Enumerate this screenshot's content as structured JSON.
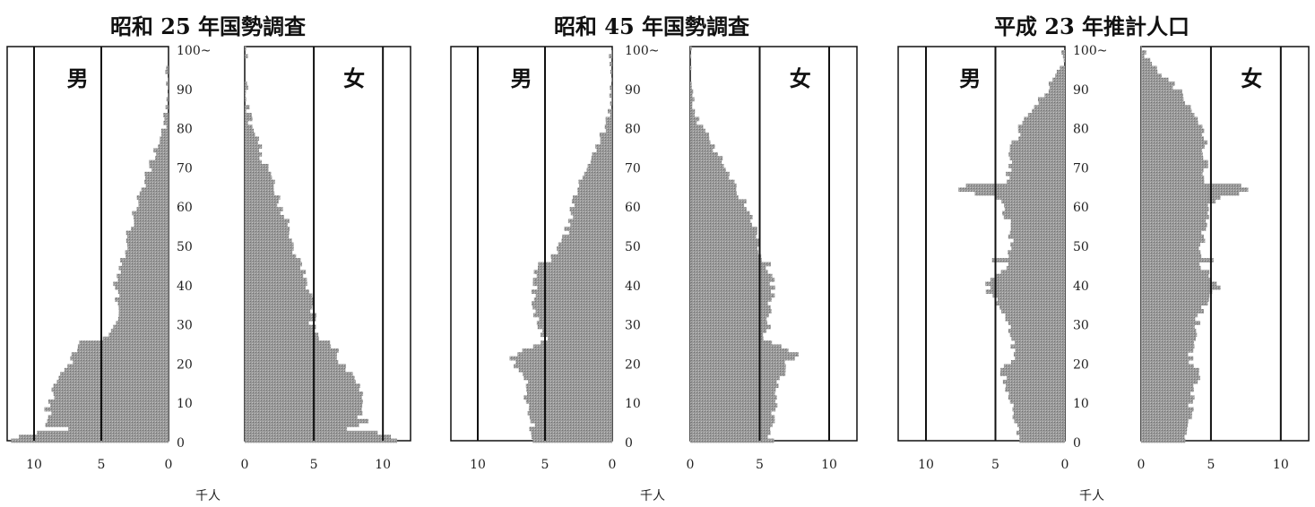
{
  "chart_data": [
    {
      "type": "bar",
      "title": "昭和 25 年国勢調査",
      "male_label": "男",
      "female_label": "女",
      "unit_label": "千人",
      "x_ticks": [
        "10",
        "5",
        "0"
      ],
      "x_ticks_female": [
        "0",
        "5",
        "10"
      ],
      "y_ticks": [
        "0",
        "10",
        "20",
        "30",
        "40",
        "50",
        "60",
        "70",
        "80",
        "90",
        "100~"
      ],
      "xlim": [
        0,
        12
      ],
      "ylim": [
        0,
        100
      ],
      "anchors_age": [
        0,
        1,
        2,
        3,
        4,
        5,
        6,
        8,
        10,
        15,
        17,
        20,
        25,
        26,
        27,
        30,
        31,
        35,
        40,
        45,
        50,
        55,
        60,
        65,
        70,
        75,
        80,
        85,
        90
      ],
      "male_anchors": [
        11.5,
        11.0,
        10.0,
        7.5,
        9.0,
        9.2,
        8.8,
        9.0,
        8.8,
        8.5,
        8.0,
        7.3,
        6.6,
        5.0,
        4.4,
        4.0,
        3.5,
        3.8,
        4.0,
        3.6,
        3.2,
        2.8,
        2.4,
        1.9,
        1.3,
        0.9,
        0.3,
        0.05,
        0.0
      ],
      "female_anchors": [
        11.0,
        10.6,
        9.7,
        7.2,
        8.5,
        8.8,
        8.4,
        8.6,
        8.4,
        8.2,
        7.6,
        7.0,
        6.3,
        5.5,
        5.2,
        4.8,
        5.0,
        4.8,
        4.5,
        4.0,
        3.5,
        3.1,
        2.6,
        2.1,
        1.5,
        1.0,
        0.5,
        0.15,
        0.0
      ]
    },
    {
      "type": "bar",
      "title": "昭和 45 年国勢調査",
      "male_label": "男",
      "female_label": "女",
      "unit_label": "千人",
      "x_ticks": [
        "10",
        "5",
        "0"
      ],
      "x_ticks_female": [
        "0",
        "5",
        "10"
      ],
      "y_ticks": [
        "0",
        "10",
        "20",
        "30",
        "40",
        "50",
        "60",
        "70",
        "80",
        "90",
        "100~"
      ],
      "xlim": [
        0,
        12
      ],
      "ylim": [
        0,
        100
      ],
      "anchors_age": [
        0,
        5,
        10,
        15,
        20,
        21,
        22,
        23,
        24,
        25,
        26,
        30,
        35,
        40,
        45,
        46,
        50,
        55,
        60,
        65,
        70,
        75,
        80,
        85,
        90
      ],
      "male_anchors": [
        6.0,
        6.0,
        6.3,
        6.5,
        7.3,
        7.6,
        7.2,
        6.6,
        6.0,
        5.4,
        5.0,
        5.6,
        5.8,
        5.8,
        5.5,
        4.5,
        3.8,
        3.2,
        3.0,
        2.4,
        1.9,
        1.2,
        0.5,
        0.1,
        0.0
      ],
      "female_anchors": [
        5.8,
        5.9,
        6.2,
        6.4,
        7.0,
        7.6,
        8.0,
        7.3,
        6.8,
        5.8,
        5.4,
        5.6,
        5.8,
        5.9,
        5.6,
        5.0,
        5.0,
        4.5,
        4.0,
        3.2,
        2.5,
        1.6,
        0.8,
        0.2,
        0.0
      ]
    },
    {
      "type": "bar",
      "title": "平成 23 年推計人口",
      "male_label": "男",
      "female_label": "女",
      "unit_label": "千人",
      "x_ticks": [
        "10",
        "5",
        "0"
      ],
      "x_ticks_female": [
        "0",
        "5",
        "10"
      ],
      "y_ticks": [
        "0",
        "10",
        "20",
        "30",
        "40",
        "50",
        "60",
        "70",
        "80",
        "90",
        "100~"
      ],
      "xlim": [
        0,
        12
      ],
      "ylim": [
        0,
        100
      ],
      "anchors_age": [
        0,
        10,
        18,
        20,
        25,
        30,
        35,
        38,
        40,
        45,
        46,
        47,
        50,
        55,
        60,
        62,
        63,
        64,
        65,
        66,
        70,
        75,
        80,
        85,
        90,
        95,
        100
      ],
      "male_anchors": [
        3.3,
        3.8,
        4.5,
        3.8,
        3.7,
        4.2,
        4.8,
        5.5,
        5.6,
        4.0,
        5.0,
        4.0,
        3.8,
        4.0,
        4.5,
        5.0,
        6.5,
        7.5,
        7.0,
        4.2,
        4.0,
        3.8,
        3.2,
        2.2,
        1.1,
        0.3,
        0.0
      ],
      "female_anchors": [
        3.2,
        3.6,
        4.2,
        3.6,
        3.6,
        4.0,
        4.6,
        5.3,
        5.6,
        4.0,
        5.0,
        4.2,
        4.3,
        4.6,
        5.0,
        5.8,
        7.2,
        7.8,
        7.0,
        4.6,
        4.6,
        4.6,
        4.3,
        3.5,
        2.5,
        1.0,
        0.1
      ]
    }
  ]
}
